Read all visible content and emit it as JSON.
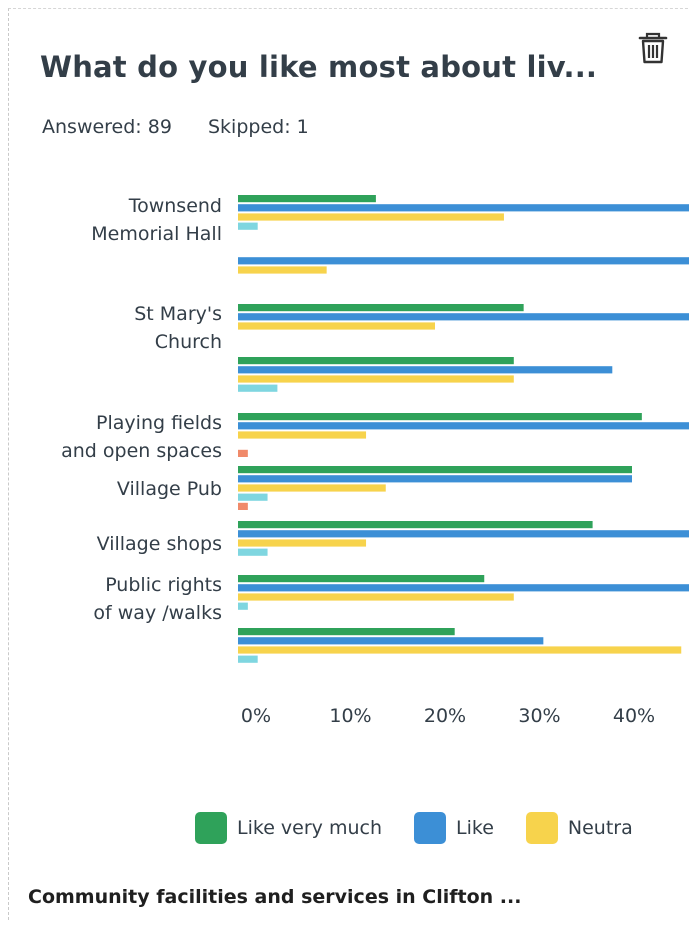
{
  "card": {
    "title": "What do you like most about liv...",
    "answered": "Answered: 89",
    "skipped": "Skipped: 1",
    "footer_title": "Community facilities and services in Clifton ..."
  },
  "icons": {
    "delete": "trash-icon"
  },
  "colors": {
    "like_very_much": "#2fa25a",
    "like": "#3c8fd6",
    "neutral": "#f7d34c",
    "dislike": "#7fd6e0",
    "dislike_very_much": "#f08a6a"
  },
  "chart_data": {
    "type": "bar",
    "orientation": "horizontal",
    "categories": [
      "Townsend Memorial Hall",
      "",
      "St Mary's Church",
      "",
      "Playing fields and open spaces",
      "Village Pub",
      "Village shops",
      "Public rights of way /walks",
      ""
    ],
    "category_label_lines": [
      [
        "Townsend",
        "Memorial Hall"
      ],
      [],
      [
        "St Mary's",
        "Church"
      ],
      [],
      [
        "Playing fields",
        "and open spaces"
      ],
      [
        "Village Pub"
      ],
      [
        "Village shops"
      ],
      [
        "Public rights",
        "of way /walks"
      ],
      []
    ],
    "series": [
      {
        "name": "Like very much",
        "values": [
          14,
          null,
          29,
          28,
          41,
          40,
          36,
          25,
          22
        ]
      },
      {
        "name": "Like",
        "values": [
          46,
          48,
          46,
          38,
          46,
          40,
          46,
          46,
          31
        ]
      },
      {
        "name": "Neutral",
        "values": [
          27,
          9,
          20,
          28,
          13,
          15,
          13,
          28,
          45
        ]
      },
      {
        "name": "",
        "values": [
          2,
          null,
          null,
          4,
          null,
          3,
          3,
          1,
          2
        ]
      },
      {
        "name": "",
        "values": [
          null,
          null,
          null,
          null,
          1,
          1,
          null,
          null,
          null
        ]
      }
    ],
    "x_ticks": [
      "0%",
      "10%",
      "20%",
      "30%",
      "40%"
    ],
    "xlim": [
      0,
      46
    ],
    "legend": [
      "Like very much",
      "Like",
      "Neutra"
    ],
    "legend_position": "bottom",
    "grid": false
  }
}
